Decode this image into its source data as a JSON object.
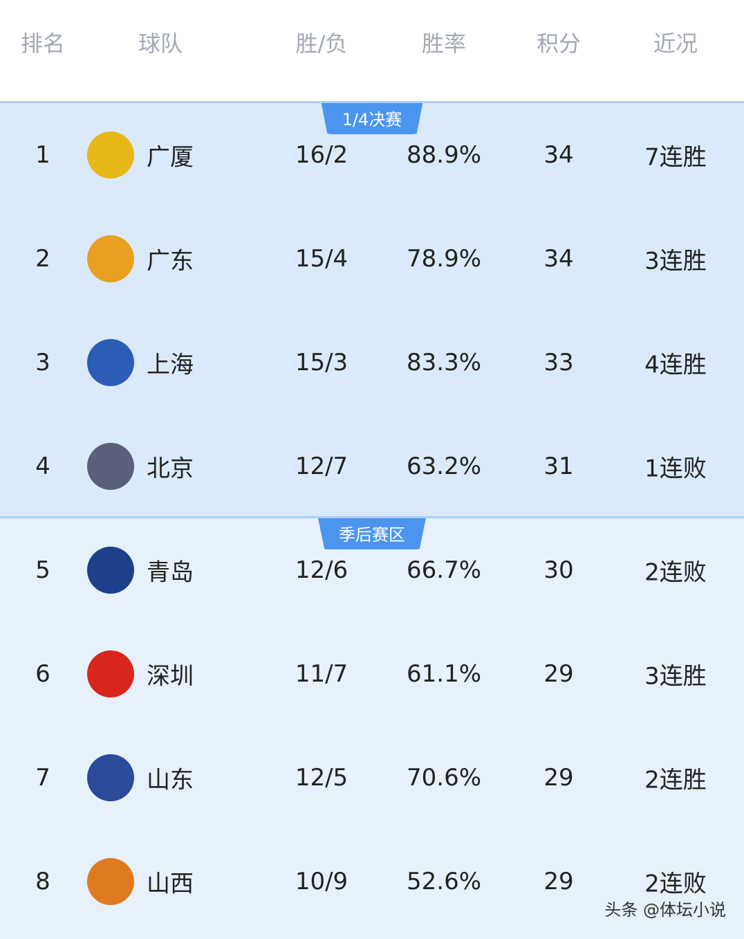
{
  "header": {
    "columns": [
      "排名",
      "球队",
      "胜/负",
      "胜率",
      "积分",
      "近况"
    ]
  },
  "sections": [
    {
      "label": "1/4决赛"
    },
    {
      "label": "季后赛区"
    }
  ],
  "rows": [
    {
      "rank": "1",
      "team": "广厦",
      "record": "16/2",
      "pct": "88.9%",
      "points": "34",
      "streak": "7连胜",
      "logo": "guangsha-lion-logo",
      "logo_color": "#e8b81a"
    },
    {
      "rank": "2",
      "team": "广东",
      "record": "15/4",
      "pct": "78.9%",
      "points": "34",
      "streak": "3连胜",
      "logo": "guangdong-tigers-logo",
      "logo_color": "#e8a020"
    },
    {
      "rank": "3",
      "team": "上海",
      "record": "15/3",
      "pct": "83.3%",
      "points": "33",
      "streak": "4连胜",
      "logo": "shanghai-sharks-logo",
      "logo_color": "#2a5cb8"
    },
    {
      "rank": "4",
      "team": "北京",
      "record": "12/7",
      "pct": "63.2%",
      "points": "31",
      "streak": "1连败",
      "logo": "beijing-ducks-logo",
      "logo_color": "#5a5f7a"
    },
    {
      "rank": "5",
      "team": "青岛",
      "record": "12/6",
      "pct": "66.7%",
      "points": "30",
      "streak": "2连败",
      "logo": "qingdao-eagles-logo",
      "logo_color": "#1e3f8a"
    },
    {
      "rank": "6",
      "team": "深圳",
      "record": "11/7",
      "pct": "61.1%",
      "points": "29",
      "streak": "3连胜",
      "logo": "shenzhen-leopards-logo",
      "logo_color": "#d8261c"
    },
    {
      "rank": "7",
      "team": "山东",
      "record": "12/5",
      "pct": "70.6%",
      "points": "29",
      "streak": "2连胜",
      "logo": "shandong-logo",
      "logo_color": "#2a4a9a"
    },
    {
      "rank": "8",
      "team": "山西",
      "record": "10/9",
      "pct": "52.6%",
      "points": "29",
      "streak": "2连败",
      "logo": "shanxi-logo",
      "logo_color": "#e07a20"
    }
  ],
  "watermark": "头条 @体坛小说"
}
